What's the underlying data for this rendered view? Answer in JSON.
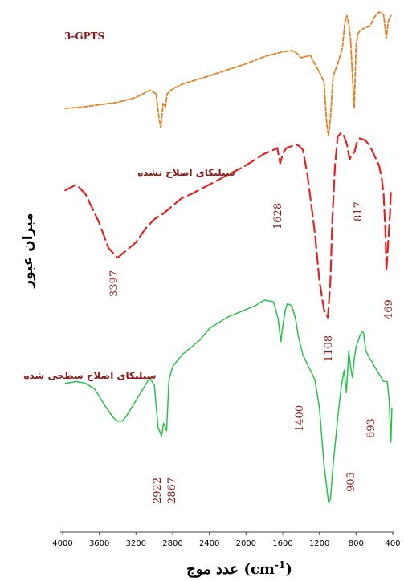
{
  "chart_data": {
    "type": "line",
    "title": "",
    "xlabel": "عدد موج (cm⁻¹)",
    "xlabel_parts": {
      "text": "عدد موج (cm",
      "sup": "-1",
      "close": ")"
    },
    "ylabel": "میزان عبور",
    "xlim": [
      4000,
      400
    ],
    "x_reversed": true,
    "x_ticks": [
      "4000",
      "3600",
      "3200",
      "2800",
      "2400",
      "2000",
      "1600",
      "1200",
      "800",
      "400"
    ],
    "grid": false,
    "colors": {
      "3-GPTS": "#e3801f",
      "unmodified": "#e52222",
      "modified": "#27c24a",
      "labels": "#8b1a1a"
    },
    "series": [
      {
        "name": "3-GPTS",
        "style": "dotted",
        "x": [
          3970,
          3800,
          3600,
          3400,
          3200,
          3050,
          2980,
          2950,
          2930,
          2905,
          2880,
          2860,
          2820,
          2700,
          2400,
          2000,
          1800,
          1600,
          1500,
          1450,
          1400,
          1300,
          1250,
          1200,
          1150,
          1120,
          1100,
          1080,
          1050,
          1000,
          950,
          920,
          900,
          880,
          860,
          840,
          820,
          800,
          780,
          750,
          700,
          650,
          600,
          550,
          500,
          470,
          450,
          420
        ],
        "y": [
          0.18,
          0.19,
          0.21,
          0.23,
          0.27,
          0.33,
          0.3,
          0.1,
          0.02,
          0.22,
          0.19,
          0.3,
          0.33,
          0.38,
          0.45,
          0.55,
          0.61,
          0.65,
          0.66,
          0.64,
          0.6,
          0.62,
          0.55,
          0.48,
          0.4,
          0.05,
          -0.05,
          0.1,
          0.45,
          0.55,
          0.68,
          0.9,
          0.95,
          0.88,
          0.75,
          0.45,
          0.18,
          0.7,
          0.8,
          0.83,
          0.85,
          0.86,
          0.94,
          0.98,
          0.96,
          0.76,
          0.9,
          0.95
        ]
      },
      {
        "name": "سیلیکای اصلاح نشده",
        "style": "dashed",
        "x": [
          3970,
          3850,
          3750,
          3600,
          3500,
          3400,
          3300,
          3200,
          3100,
          3000,
          2900,
          2800,
          2700,
          2600,
          2400,
          2200,
          2000,
          1900,
          1800,
          1700,
          1660,
          1628,
          1600,
          1560,
          1500,
          1460,
          1420,
          1380,
          1330,
          1250,
          1200,
          1150,
          1108,
          1080,
          1060,
          1030,
          1000,
          960,
          930,
          900,
          870,
          850,
          817,
          790,
          760,
          700,
          650,
          600,
          550,
          520,
          500,
          480,
          469,
          450,
          430,
          420
        ],
        "y": [
          0.72,
          0.75,
          0.7,
          0.55,
          0.42,
          0.37,
          0.41,
          0.45,
          0.52,
          0.57,
          0.6,
          0.64,
          0.68,
          0.7,
          0.75,
          0.8,
          0.85,
          0.88,
          0.91,
          0.93,
          0.94,
          0.86,
          0.91,
          0.94,
          0.95,
          0.96,
          0.95,
          0.93,
          0.8,
          0.5,
          0.25,
          0.1,
          0.06,
          0.25,
          0.55,
          0.85,
          1.0,
          1.02,
          1.0,
          0.96,
          0.88,
          0.9,
          0.92,
          0.97,
          0.99,
          0.98,
          0.95,
          0.9,
          0.85,
          0.78,
          0.7,
          0.5,
          0.3,
          0.45,
          0.6,
          0.72
        ]
      },
      {
        "name": "سیلیکای اصلاح سطحی شده",
        "style": "solid",
        "x": [
          3970,
          3850,
          3750,
          3650,
          3550,
          3450,
          3400,
          3350,
          3300,
          3200,
          3100,
          3050,
          3000,
          2960,
          2922,
          2900,
          2867,
          2840,
          2800,
          2700,
          2600,
          2500,
          2400,
          2300,
          2200,
          2100,
          2000,
          1900,
          1800,
          1700,
          1650,
          1620,
          1600,
          1570,
          1550,
          1500,
          1460,
          1430,
          1400,
          1380,
          1300,
          1250,
          1200,
          1150,
          1120,
          1100,
          1080,
          1050,
          1000,
          960,
          930,
          905,
          880,
          860,
          840,
          820,
          800,
          780,
          760,
          740,
          720,
          693,
          670,
          650,
          620,
          600,
          550,
          500,
          460,
          440,
          420,
          410
        ],
        "y": [
          0.73,
          0.74,
          0.73,
          0.7,
          0.62,
          0.55,
          0.53,
          0.53,
          0.56,
          0.64,
          0.72,
          0.76,
          0.72,
          0.5,
          0.45,
          0.52,
          0.48,
          0.75,
          0.82,
          0.88,
          0.92,
          0.96,
          1.02,
          1.05,
          1.08,
          1.1,
          1.12,
          1.14,
          1.17,
          1.16,
          1.07,
          0.95,
          1.03,
          1.12,
          1.15,
          1.14,
          1.07,
          0.98,
          0.92,
          0.88,
          0.8,
          0.75,
          0.6,
          0.3,
          0.18,
          0.1,
          0.12,
          0.3,
          0.55,
          0.72,
          0.8,
          0.68,
          0.9,
          0.82,
          0.76,
          0.86,
          0.92,
          0.95,
          0.98,
          1.0,
          1.0,
          0.9,
          0.88,
          0.86,
          0.84,
          0.82,
          0.78,
          0.74,
          0.74,
          0.65,
          0.42,
          0.6
        ]
      }
    ],
    "annotations": [
      {
        "series": 1,
        "text": "1628",
        "x": 1628
      },
      {
        "series": 1,
        "text": "3397",
        "x": 3397
      },
      {
        "series": 1,
        "text": "1108",
        "x": 1108
      },
      {
        "series": 1,
        "text": "817",
        "x": 817
      },
      {
        "series": 1,
        "text": "469",
        "x": 469
      },
      {
        "series": 2,
        "text": "1400",
        "x": 1400
      },
      {
        "series": 2,
        "text": "2922",
        "x": 2922
      },
      {
        "series": 2,
        "text": "2867",
        "x": 2867
      },
      {
        "series": 2,
        "text": "905",
        "x": 905
      },
      {
        "series": 2,
        "text": "693",
        "x": 693
      }
    ],
    "series_labels": [
      "3-GPTS",
      "سیلیکای اصلاح نشده",
      "سیلیکای اصلاح سطحی شده"
    ]
  }
}
